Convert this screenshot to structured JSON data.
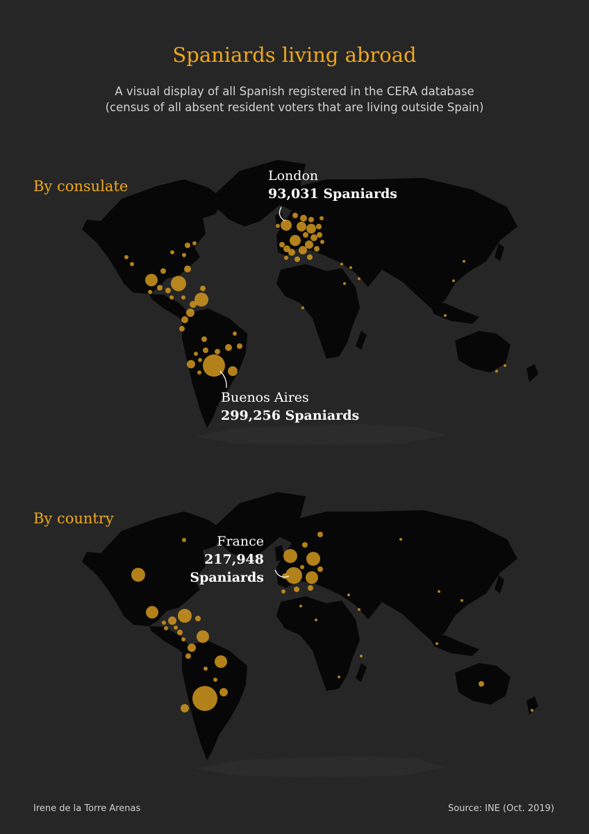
{
  "header": {
    "title": "Spaniards living abroad",
    "subtitle_line1": "A visual display of all Spanish registered in the CERA database",
    "subtitle_line2": "(census of all absent resident voters that are living outside Spain)"
  },
  "colors": {
    "accent": "#f0a81c",
    "bubble": "#d99c1e",
    "land": "#070707",
    "background": "#262626"
  },
  "sections": {
    "consulate": {
      "label": "By consulate",
      "callouts": [
        {
          "place": "London",
          "count": "93,031 Spaniards"
        },
        {
          "place": "Buenos Aires",
          "count": "299,256 Spaniards"
        }
      ]
    },
    "country": {
      "label": "By country",
      "callouts": [
        {
          "place": "France",
          "count_line1": "217,948",
          "count_line2": "Spaniards"
        }
      ]
    }
  },
  "footer": {
    "author": "Irene de la Torre Arenas",
    "source": "Source: INE (Oct. 2019)"
  }
}
